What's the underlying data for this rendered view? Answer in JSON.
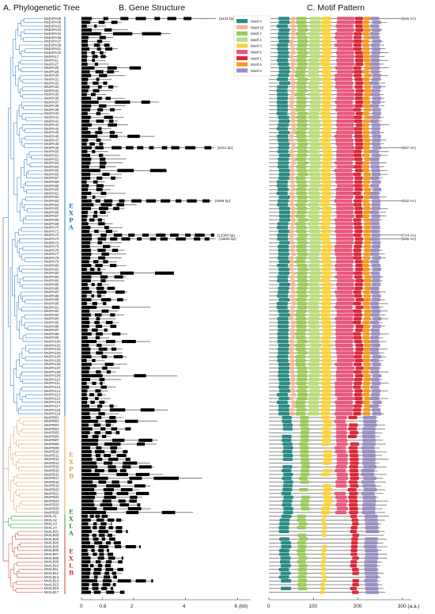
{
  "panels": {
    "a": "A. Phylogenetic Tree",
    "b": "B. Gene Structure",
    "c": "C. Motif Pattern"
  },
  "groups": [
    {
      "name": "EXPA",
      "color": "#2a7bbf",
      "start": 0,
      "end": 104
    },
    {
      "name": "EXPB",
      "color": "#d4a94e",
      "start": 105,
      "end": 130
    },
    {
      "name": "EXLA",
      "color": "#2f9a3c",
      "start": 131,
      "end": 134
    },
    {
      "name": "EXLB",
      "color": "#c7443a",
      "start": 135,
      "end": 151
    }
  ],
  "genes": [
    "MsEXPA09",
    "MsEXPA05",
    "MsEXPA02",
    "MsEXPA03",
    "MsEXPA04",
    "MsEXPA06",
    "MsEXPA07",
    "MsEXPA08",
    "MsEXPA01",
    "MsEXPA10",
    "MsXPA17",
    "MsXPA11",
    "MsXPA27",
    "MsXPA28",
    "MsXPA29",
    "MsXPA30",
    "MsXPA31",
    "MsXPA32",
    "MsXPA33",
    "MsXPA34",
    "MsXPA35",
    "MsXPA36",
    "MsXPA37",
    "MsXPA38",
    "MsXPA39",
    "MsXPA40",
    "MsXPA41",
    "MsXPA42",
    "MsXPA43",
    "MsXPA44",
    "MsXPA45",
    "MsXPA46",
    "MsXPA47",
    "MsXPA48",
    "MsXPA49",
    "MsXPA50",
    "MsXPA51",
    "MsXPA52",
    "MsXPA53",
    "MsXPA54",
    "MsXPA55",
    "MsXPA56",
    "MsXPA57",
    "MsXPA58",
    "MsXPA59",
    "MsXPA60",
    "MsXPA61",
    "MsXPA62",
    "MsXPA63",
    "MsXPA64",
    "MsXPA65",
    "MsXPA66",
    "MsXPA67",
    "MsXPA68",
    "MsXPA69",
    "MsXPA70",
    "MsXPA71",
    "MsXPA72",
    "MsXPA73",
    "MsXPA74",
    "MsXPA75",
    "MsXPA76",
    "MsXPA77",
    "MsXPA78",
    "MsXPA79",
    "MsXPA80",
    "MsXPA81",
    "MsXPA82",
    "MsXPA83",
    "MsXPA84",
    "MsXPA85",
    "MsXPA86",
    "MsXPA87",
    "MsXPA88",
    "MsXPA89",
    "MsXPA90",
    "MsXPA91",
    "MsXPA92",
    "MsXPA93",
    "MsXPA94",
    "MsXPA95",
    "MsXPA96",
    "MsXPA97",
    "MsXPA98",
    "MsXPA99",
    "MsXPA100",
    "MsXPA101",
    "MsXPA102",
    "MsXPA103",
    "MsXPA104",
    "MsXPA105",
    "MsXPA106",
    "MsXPA107",
    "MsXPA108",
    "MsXPA109",
    "MsXPA110",
    "MsXPA111",
    "MsXPA112",
    "MsXPA113",
    "MsXPA114",
    "MsXPA115",
    "MsXPA116",
    "MsXPA117",
    "MsXPA118",
    "MsXPA119",
    "MsXPB01",
    "MsXPB02",
    "MsXPB03",
    "MsXPB04",
    "MsXPB05",
    "MsXPB06",
    "MsXPB07",
    "MsXPB08",
    "MsXPB09",
    "MsXPB10",
    "MsXPB11",
    "MsXPB12",
    "MsXPB13",
    "MsXPB14",
    "MsXPB15",
    "MsXPB16",
    "MsXPB17",
    "MsXPB18",
    "MsXPB19",
    "MsXPB20",
    "MsXPB21",
    "MsXPB22",
    "MsXPB23",
    "MsXPB24",
    "MsXPB25",
    "MsXPB26",
    "MsXLA1",
    "MsXLA2",
    "MsXLA3",
    "MsXLA4",
    "MsXLB01",
    "MsXLB02",
    "MsXLB03",
    "MsXLB04",
    "MsXLB05",
    "MsXLB06",
    "MsXLB07",
    "MsXLB08",
    "MsXLB09",
    "MsXLB10",
    "MsXLB11",
    "MsXLB12",
    "MsXLB13",
    "MsXLB14",
    "MsXLB15",
    "MsXLB16",
    "MsXLB17"
  ],
  "gene_structure": {
    "axis_ticks": [
      "0",
      "0.8",
      "2",
      "4",
      "6 (kb)"
    ],
    "annotations": [
      {
        "gene_index": 0,
        "text": "(5433 bp)"
      },
      {
        "gene_index": 34,
        "text": "(5151 bp)"
      },
      {
        "gene_index": 48,
        "text": "(4996 bp)"
      },
      {
        "gene_index": 57,
        "text": "(12080 bp)"
      },
      {
        "gene_index": 58,
        "text": "(13505 bp)"
      }
    ]
  },
  "motif": {
    "legend": [
      {
        "name": "Motif 4",
        "color": "#2a8a84"
      },
      {
        "name": "Motif 10",
        "color": "#f4b98c"
      },
      {
        "name": "Motif 7",
        "color": "#9ac95a"
      },
      {
        "name": "Motif 2",
        "color": "#b9dc7b"
      },
      {
        "name": "Motif 3",
        "color": "#f8d23a"
      },
      {
        "name": "Motif 5",
        "color": "#e8587c"
      },
      {
        "name": "Motif 1",
        "color": "#d9283a"
      },
      {
        "name": "Motif 6",
        "color": "#f59a1e"
      },
      {
        "name": "Motif 8",
        "color": "#9a8fc0"
      }
    ],
    "axis_ticks": [
      "0",
      "100",
      "200",
      "300 (a.a.)"
    ],
    "annotations": [
      {
        "gene_index": 0,
        "text": "(646 AA)"
      },
      {
        "gene_index": 34,
        "text": "(657 AA)"
      },
      {
        "gene_index": 48,
        "text": "(532 AA)"
      },
      {
        "gene_index": 57,
        "text": "(744 AA)"
      },
      {
        "gene_index": 58,
        "text": "(696 AA)"
      }
    ]
  }
}
